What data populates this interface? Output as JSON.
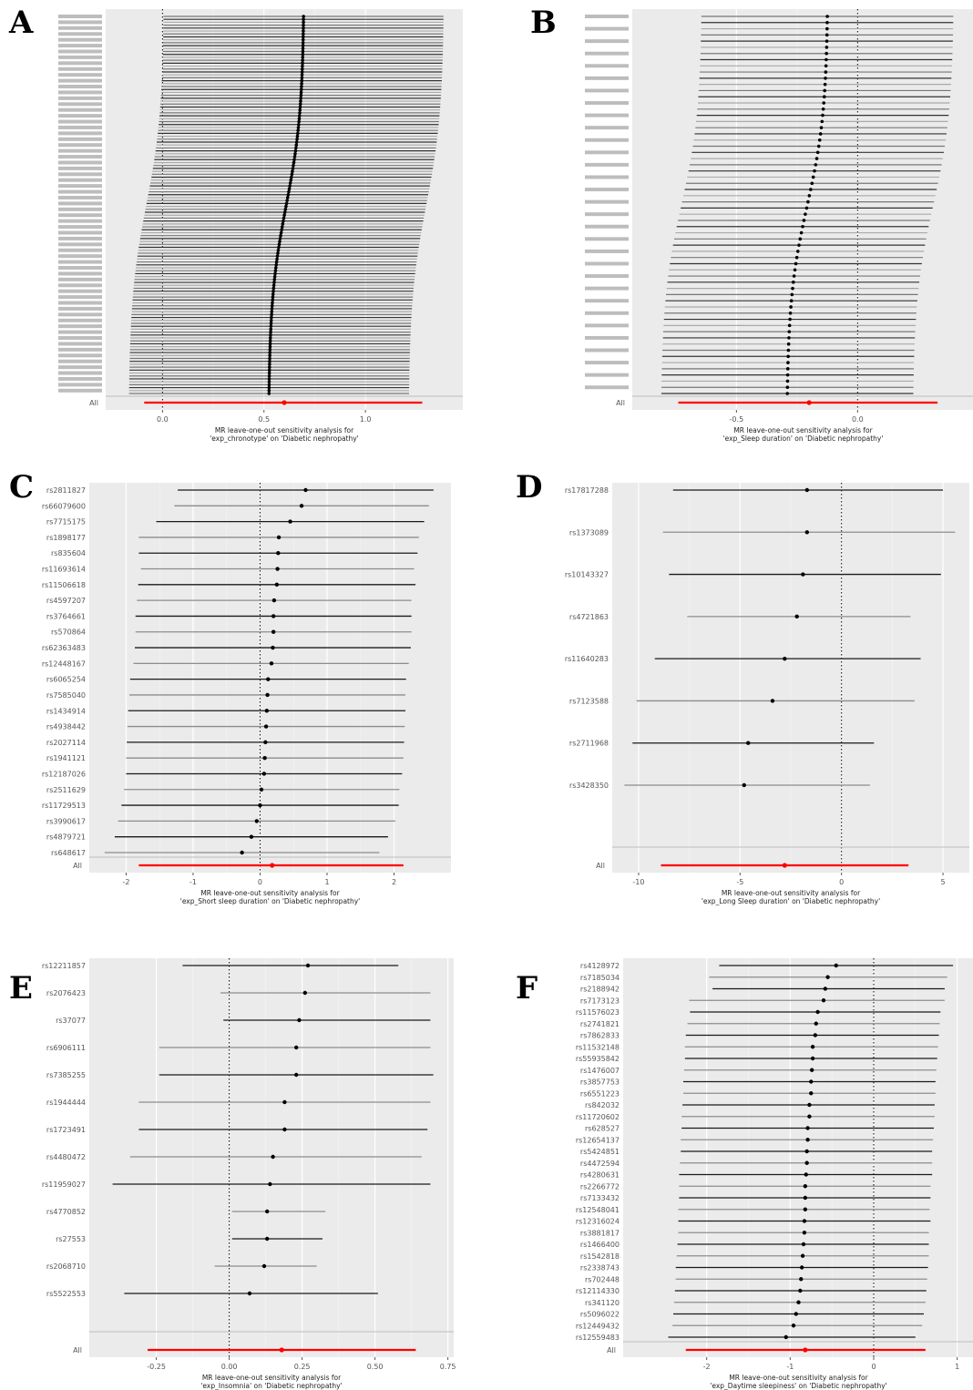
{
  "chart_data": [
    {
      "type": "forest",
      "panel_label": "A",
      "xlabel_line1": "MR leave-one-out sensitivity analysis for",
      "xlabel_line2": "'exp_chronotype' on 'Diabetic nephropathy'",
      "x_ticks": [
        0.0,
        0.5,
        1.0
      ],
      "x_tick_labels": [
        "0.0",
        "0.5",
        "1.0"
      ],
      "xlim": [
        -0.28,
        1.48
      ],
      "reference_line": 0,
      "dense": true,
      "n_snps": 130,
      "estimate_range": [
        0.525,
        0.695
      ],
      "ci_halfwidth": 0.69,
      "all_label": "All",
      "overall": {
        "estimate": 0.6,
        "lower": -0.09,
        "upper": 1.28
      }
    },
    {
      "type": "forest",
      "panel_label": "B",
      "xlabel_line1": "MR leave-one-out sensitivity analysis for",
      "xlabel_line2": "'exp_Sleep duration' on 'Diabetic nephropathy'",
      "x_ticks": [
        -0.5,
        0.0
      ],
      "x_tick_labels": [
        "-0.5",
        "0.0"
      ],
      "xlim": [
        -0.93,
        0.48
      ],
      "reference_line": 0,
      "dense": true,
      "n_snps": 62,
      "estimate_range": [
        -0.29,
        -0.125
      ],
      "ci_halfwidth": 0.52,
      "all_label": "All",
      "overall": {
        "estimate": -0.2,
        "lower": -0.74,
        "upper": 0.33
      }
    },
    {
      "type": "forest",
      "panel_label": "C",
      "xlabel_line1": "MR leave-one-out sensitivity analysis for",
      "xlabel_line2": "'exp_Short sleep duration' on 'Diabetic nephropathy'",
      "x_ticks": [
        -2,
        -1,
        0,
        1,
        2
      ],
      "x_tick_labels": [
        "-2",
        "-1",
        "0",
        "1",
        "2"
      ],
      "xlim": [
        -2.55,
        2.85
      ],
      "reference_line": 0,
      "snps": [
        "rs2811827",
        "rs66079600",
        "rs7715175",
        "rs1898177",
        "rs835604",
        "rs11693614",
        "rs11506618",
        "rs4597207",
        "rs3764661",
        "rs570864",
        "rs62363483",
        "rs12448167",
        "rs6065254",
        "rs7585040",
        "rs1434914",
        "rs4938442",
        "rs2027114",
        "rs1941121",
        "rs12187026",
        "rs2511629",
        "rs11729513",
        "rs3990617",
        "rs4879721",
        "rs648617"
      ],
      "estimates": [
        0.68,
        0.62,
        0.45,
        0.28,
        0.27,
        0.26,
        0.25,
        0.21,
        0.2,
        0.2,
        0.19,
        0.17,
        0.12,
        0.11,
        0.1,
        0.09,
        0.08,
        0.07,
        0.06,
        0.02,
        0.0,
        -0.05,
        -0.13,
        -0.27
      ],
      "lower": [
        -1.23,
        -1.28,
        -1.55,
        -1.81,
        -1.81,
        -1.78,
        -1.82,
        -1.84,
        -1.86,
        -1.86,
        -1.87,
        -1.89,
        -1.94,
        -1.95,
        -1.97,
        -1.98,
        -1.99,
        -2.0,
        -2.0,
        -2.03,
        -2.07,
        -2.12,
        -2.17,
        -2.32
      ],
      "upper": [
        2.59,
        2.52,
        2.45,
        2.37,
        2.35,
        2.3,
        2.32,
        2.26,
        2.26,
        2.26,
        2.25,
        2.22,
        2.18,
        2.17,
        2.17,
        2.16,
        2.15,
        2.14,
        2.12,
        2.08,
        2.07,
        2.02,
        1.91,
        1.78
      ],
      "all_label": "All",
      "overall": {
        "estimate": 0.18,
        "lower": -1.81,
        "upper": 2.14
      }
    },
    {
      "type": "forest",
      "panel_label": "D",
      "xlabel_line1": "MR leave-one-out sensitivity analysis for",
      "xlabel_line2": "'exp_Long Sleep duration' on 'Diabetic nephropathy'",
      "x_ticks": [
        -10,
        -5,
        0,
        5
      ],
      "x_tick_labels": [
        "-10",
        "-5",
        "0",
        "5"
      ],
      "xlim": [
        -11.3,
        6.3
      ],
      "reference_line": 0,
      "snps": [
        "rs17817288",
        "rs1373089",
        "rs10143327",
        "rs4721863",
        "rs11640283",
        "rs7123588",
        "rs2711968",
        "rs3428350"
      ],
      "estimates": [
        -1.7,
        -1.7,
        -1.9,
        -2.2,
        -2.8,
        -3.4,
        -4.6,
        -4.8
      ],
      "lower": [
        -8.3,
        -8.8,
        -8.5,
        -7.6,
        -9.2,
        -10.1,
        -10.3,
        -10.7
      ],
      "upper": [
        5.0,
        5.6,
        4.9,
        3.4,
        3.9,
        3.6,
        1.6,
        1.4
      ],
      "all_label": "All",
      "overall": {
        "estimate": -2.8,
        "lower": -8.9,
        "upper": 3.3
      }
    },
    {
      "type": "forest",
      "panel_label": "E",
      "xlabel_line1": "MR leave-one-out sensitivity analysis for",
      "xlabel_line2": "'exp_Insomnia' on 'Diabetic nephropathy'",
      "x_ticks": [
        -0.25,
        0.0,
        0.25,
        0.5,
        0.75
      ],
      "x_tick_labels": [
        "-0.25",
        "0.00",
        "0.25",
        "0.50",
        "0.75"
      ],
      "xlim": [
        -0.48,
        0.77
      ],
      "reference_line": 0,
      "snps": [
        "rs12211857",
        "rs2076423",
        "rs37077",
        "rs6906111",
        "rs7385255",
        "rs1944444",
        "rs1723491",
        "rs4480472",
        "rs11959027",
        "rs4770852",
        "rs27553",
        "rs2068710",
        "rs5522553"
      ],
      "estimates": [
        0.27,
        0.26,
        0.24,
        0.23,
        0.23,
        0.19,
        0.19,
        0.15,
        0.14,
        0.13,
        0.13,
        0.12,
        0.07
      ],
      "lower": [
        -0.16,
        -0.03,
        -0.02,
        -0.24,
        -0.24,
        -0.31,
        -0.31,
        -0.34,
        -0.4,
        0.01,
        0.01,
        -0.05,
        -0.36
      ],
      "upper": [
        0.58,
        0.69,
        0.69,
        0.69,
        0.7,
        0.69,
        0.68,
        0.66,
        0.69,
        0.33,
        0.32,
        0.3,
        0.51
      ],
      "all_label": "All",
      "overall": {
        "estimate": 0.18,
        "lower": -0.28,
        "upper": 0.64
      }
    },
    {
      "type": "forest",
      "panel_label": "F",
      "xlabel_line1": "MR leave-one-out sensitivity analysis for",
      "xlabel_line2": "'exp_Daytime sleepiness' on 'Diabetic nephropathy'",
      "x_ticks": [
        -2,
        -1,
        0,
        1
      ],
      "x_tick_labels": [
        "-2",
        "-1",
        "0",
        "1"
      ],
      "xlim": [
        -3.0,
        1.2
      ],
      "reference_line": 0,
      "snps": [
        "rs4128972",
        "rs7185034",
        "rs2188942",
        "rs7173123",
        "rs11576023",
        "rs2741821",
        "rs7862833",
        "rs11532148",
        "rs55935842",
        "rs1476007",
        "rs3857753",
        "rs6551223",
        "rs842032",
        "rs11720602",
        "rs628527",
        "rs12654137",
        "rs5424851",
        "rs4472594",
        "rs4280631",
        "rs2266772",
        "rs7133432",
        "rs12548041",
        "rs12316024",
        "rs3881817",
        "rs1466400",
        "rs1542818",
        "rs2338743",
        "rs702448",
        "rs12114330",
        "rs341120",
        "rs5096022",
        "rs12449432",
        "rs12559483"
      ],
      "estimates": [
        -0.45,
        -0.55,
        -0.58,
        -0.6,
        -0.67,
        -0.69,
        -0.7,
        -0.73,
        -0.73,
        -0.74,
        -0.75,
        -0.75,
        -0.77,
        -0.77,
        -0.79,
        -0.79,
        -0.8,
        -0.8,
        -0.81,
        -0.82,
        -0.82,
        -0.82,
        -0.83,
        -0.83,
        -0.84,
        -0.85,
        -0.86,
        -0.87,
        -0.88,
        -0.9,
        -0.93,
        -0.96,
        -1.05
      ],
      "lower": [
        -1.85,
        -1.97,
        -1.93,
        -2.21,
        -2.2,
        -2.23,
        -2.25,
        -2.26,
        -2.26,
        -2.27,
        -2.28,
        -2.28,
        -2.29,
        -2.3,
        -2.3,
        -2.31,
        -2.31,
        -2.32,
        -2.33,
        -2.33,
        -2.33,
        -2.34,
        -2.34,
        -2.34,
        -2.35,
        -2.36,
        -2.37,
        -2.37,
        -2.38,
        -2.39,
        -2.4,
        -2.41,
        -2.46
      ],
      "upper": [
        0.95,
        0.88,
        0.85,
        0.85,
        0.8,
        0.79,
        0.78,
        0.77,
        0.76,
        0.75,
        0.74,
        0.74,
        0.73,
        0.73,
        0.72,
        0.71,
        0.7,
        0.7,
        0.7,
        0.68,
        0.68,
        0.67,
        0.68,
        0.66,
        0.66,
        0.66,
        0.65,
        0.64,
        0.63,
        0.62,
        0.6,
        0.58,
        0.5
      ],
      "all_label": "All",
      "overall": {
        "estimate": -0.82,
        "lower": -2.25,
        "upper": 0.62
      }
    }
  ]
}
